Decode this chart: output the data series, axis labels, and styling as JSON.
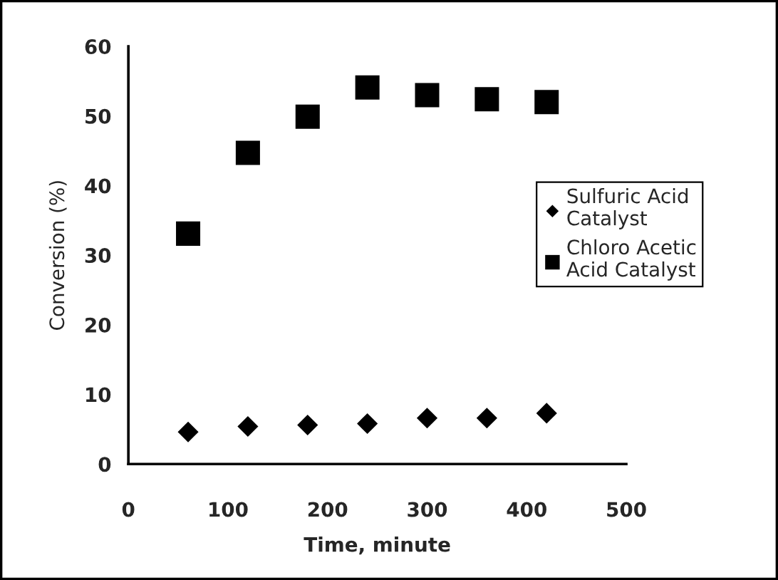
{
  "chart_data": {
    "type": "scatter",
    "xlabel": "Time, minute",
    "ylabel": "Conversion (%)",
    "x": [
      60,
      120,
      180,
      240,
      300,
      360,
      420
    ],
    "series": [
      {
        "name": "Sulfuric Acid\nCatalyst",
        "color": "#000000",
        "marker": "diamond",
        "values": [
          4.6,
          5.4,
          5.6,
          5.8,
          6.6,
          6.6,
          7.3
        ]
      },
      {
        "name": "Chloro Acetic\nAcid Catalyst",
        "color": "#000000",
        "marker": "square",
        "values": [
          33.1,
          44.7,
          49.9,
          54.1,
          53.0,
          52.4,
          52.0
        ]
      }
    ],
    "xlim": [
      0,
      500
    ],
    "xticks": [
      0,
      100,
      200,
      300,
      400,
      500
    ],
    "ylim": [
      0,
      60
    ],
    "yticks": [
      0,
      10,
      20,
      30,
      40,
      50,
      60
    ],
    "grid": false,
    "legend": "right"
  }
}
